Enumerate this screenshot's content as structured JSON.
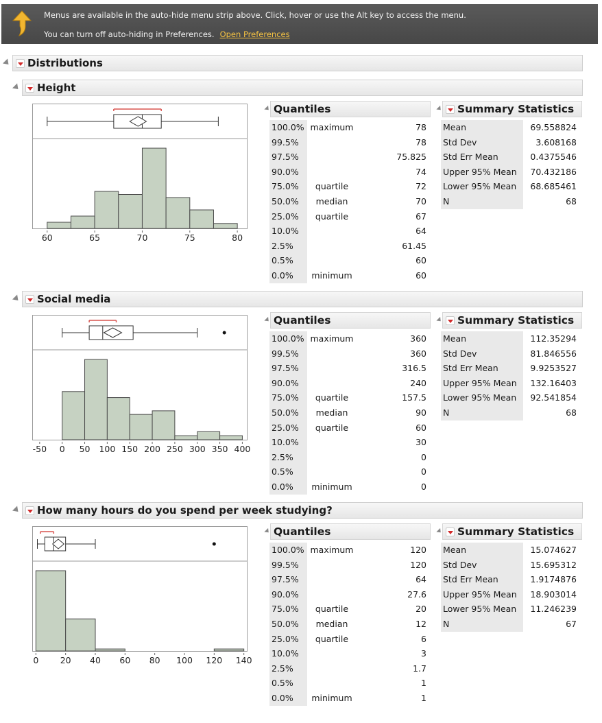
{
  "banner": {
    "line1": "Menus are available in the auto-hide menu strip above. Click, hover or use the Alt key to access the menu.",
    "line2": "You can turn off auto-hiding in Preferences.",
    "link": "Open Preferences",
    "icon": "up-arrow-icon"
  },
  "report": {
    "title": "Distributions"
  },
  "labels": {
    "quantiles": "Quantiles",
    "summary": "Summary Statistics"
  },
  "colors": {
    "bar_fill": "#c6d2c2",
    "bar_stroke": "#4a4a4a",
    "shortest_half": "#d9534f",
    "banner_link": "#f5c242"
  },
  "quantile_pcts": [
    "100.0%",
    "99.5%",
    "97.5%",
    "90.0%",
    "75.0%",
    "50.0%",
    "25.0%",
    "10.0%",
    "2.5%",
    "0.5%",
    "0.0%"
  ],
  "quantile_names": [
    "maximum",
    "",
    "",
    "",
    "quartile",
    "median",
    "quartile",
    "",
    "",
    "",
    "minimum"
  ],
  "stat_labels": [
    "Mean",
    "Std Dev",
    "Std Err Mean",
    "Upper 95% Mean",
    "Lower 95% Mean",
    "N"
  ],
  "variables": [
    {
      "title": "Height",
      "quantile_values": [
        "78",
        "78",
        "75.825",
        "74",
        "72",
        "70",
        "67",
        "64",
        "61.45",
        "60",
        "60"
      ],
      "stat_values": [
        "69.558824",
        "3.608168",
        "0.4375546",
        "70.432186",
        "68.685461",
        "68"
      ],
      "chart_data": {
        "type": "bar",
        "x_ticks": [
          "60",
          "65",
          "70",
          "75",
          "80"
        ],
        "xlim": [
          58.5,
          81
        ],
        "bins": [
          [
            60,
            62.5,
            1
          ],
          [
            62.5,
            65,
            2
          ],
          [
            65,
            67.5,
            6
          ],
          [
            67.5,
            70,
            5.5
          ],
          [
            70,
            72.5,
            13
          ],
          [
            72.5,
            75,
            5
          ],
          [
            75,
            77.5,
            3
          ],
          [
            77.5,
            80,
            0.8
          ]
        ],
        "box": {
          "min": 60,
          "q1": 67,
          "median": 70,
          "q3": 72,
          "max": 78,
          "mean": 69.558824,
          "ci_low": 68.685461,
          "ci_high": 70.432186,
          "shortest_half": [
            67,
            72
          ],
          "outliers": []
        }
      }
    },
    {
      "title": "Social media",
      "quantile_values": [
        "360",
        "360",
        "316.5",
        "240",
        "157.5",
        "90",
        "60",
        "30",
        "0",
        "0",
        "0"
      ],
      "stat_values": [
        "112.35294",
        "81.846556",
        "9.9253527",
        "132.16403",
        "92.541854",
        "68"
      ],
      "chart_data": {
        "type": "bar",
        "x_ticks": [
          "-50",
          "0",
          "50",
          "100",
          "150",
          "200",
          "250",
          "300",
          "350",
          "400"
        ],
        "xlim": [
          -65,
          410
        ],
        "bins": [
          [
            0,
            50,
            12
          ],
          [
            50,
            100,
            20
          ],
          [
            100,
            150,
            10.5
          ],
          [
            150,
            200,
            6.3
          ],
          [
            200,
            250,
            7.2
          ],
          [
            250,
            300,
            1
          ],
          [
            300,
            350,
            2
          ],
          [
            350,
            400,
            1
          ]
        ],
        "box": {
          "min": 0,
          "q1": 60,
          "median": 90,
          "q3": 157.5,
          "max": 300,
          "mean": 112.35294,
          "ci_low": 92.541854,
          "ci_high": 132.16403,
          "shortest_half": [
            60,
            120
          ],
          "outliers": [
            360
          ]
        }
      }
    },
    {
      "title": "How many hours do you spend per week studying?",
      "quantile_values": [
        "120",
        "120",
        "64",
        "27.6",
        "20",
        "12",
        "6",
        "3",
        "1.7",
        "1",
        "1"
      ],
      "stat_values": [
        "15.074627",
        "15.695312",
        "1.9174876",
        "18.903014",
        "11.246239",
        "67"
      ],
      "chart_data": {
        "type": "bar",
        "x_ticks": [
          "0",
          "20",
          "40",
          "60",
          "80",
          "100",
          "120",
          "140"
        ],
        "xlim": [
          -2,
          142
        ],
        "bins": [
          [
            0,
            20,
            40
          ],
          [
            20,
            40,
            16
          ],
          [
            40,
            60,
            1
          ],
          [
            120,
            140,
            1
          ]
        ],
        "box": {
          "min": 1,
          "q1": 6,
          "median": 12,
          "q3": 20,
          "max": 40,
          "mean": 15.074627,
          "ci_low": 11.246239,
          "ci_high": 18.903014,
          "shortest_half": [
            3,
            12
          ],
          "outliers": [
            120
          ]
        }
      }
    }
  ]
}
